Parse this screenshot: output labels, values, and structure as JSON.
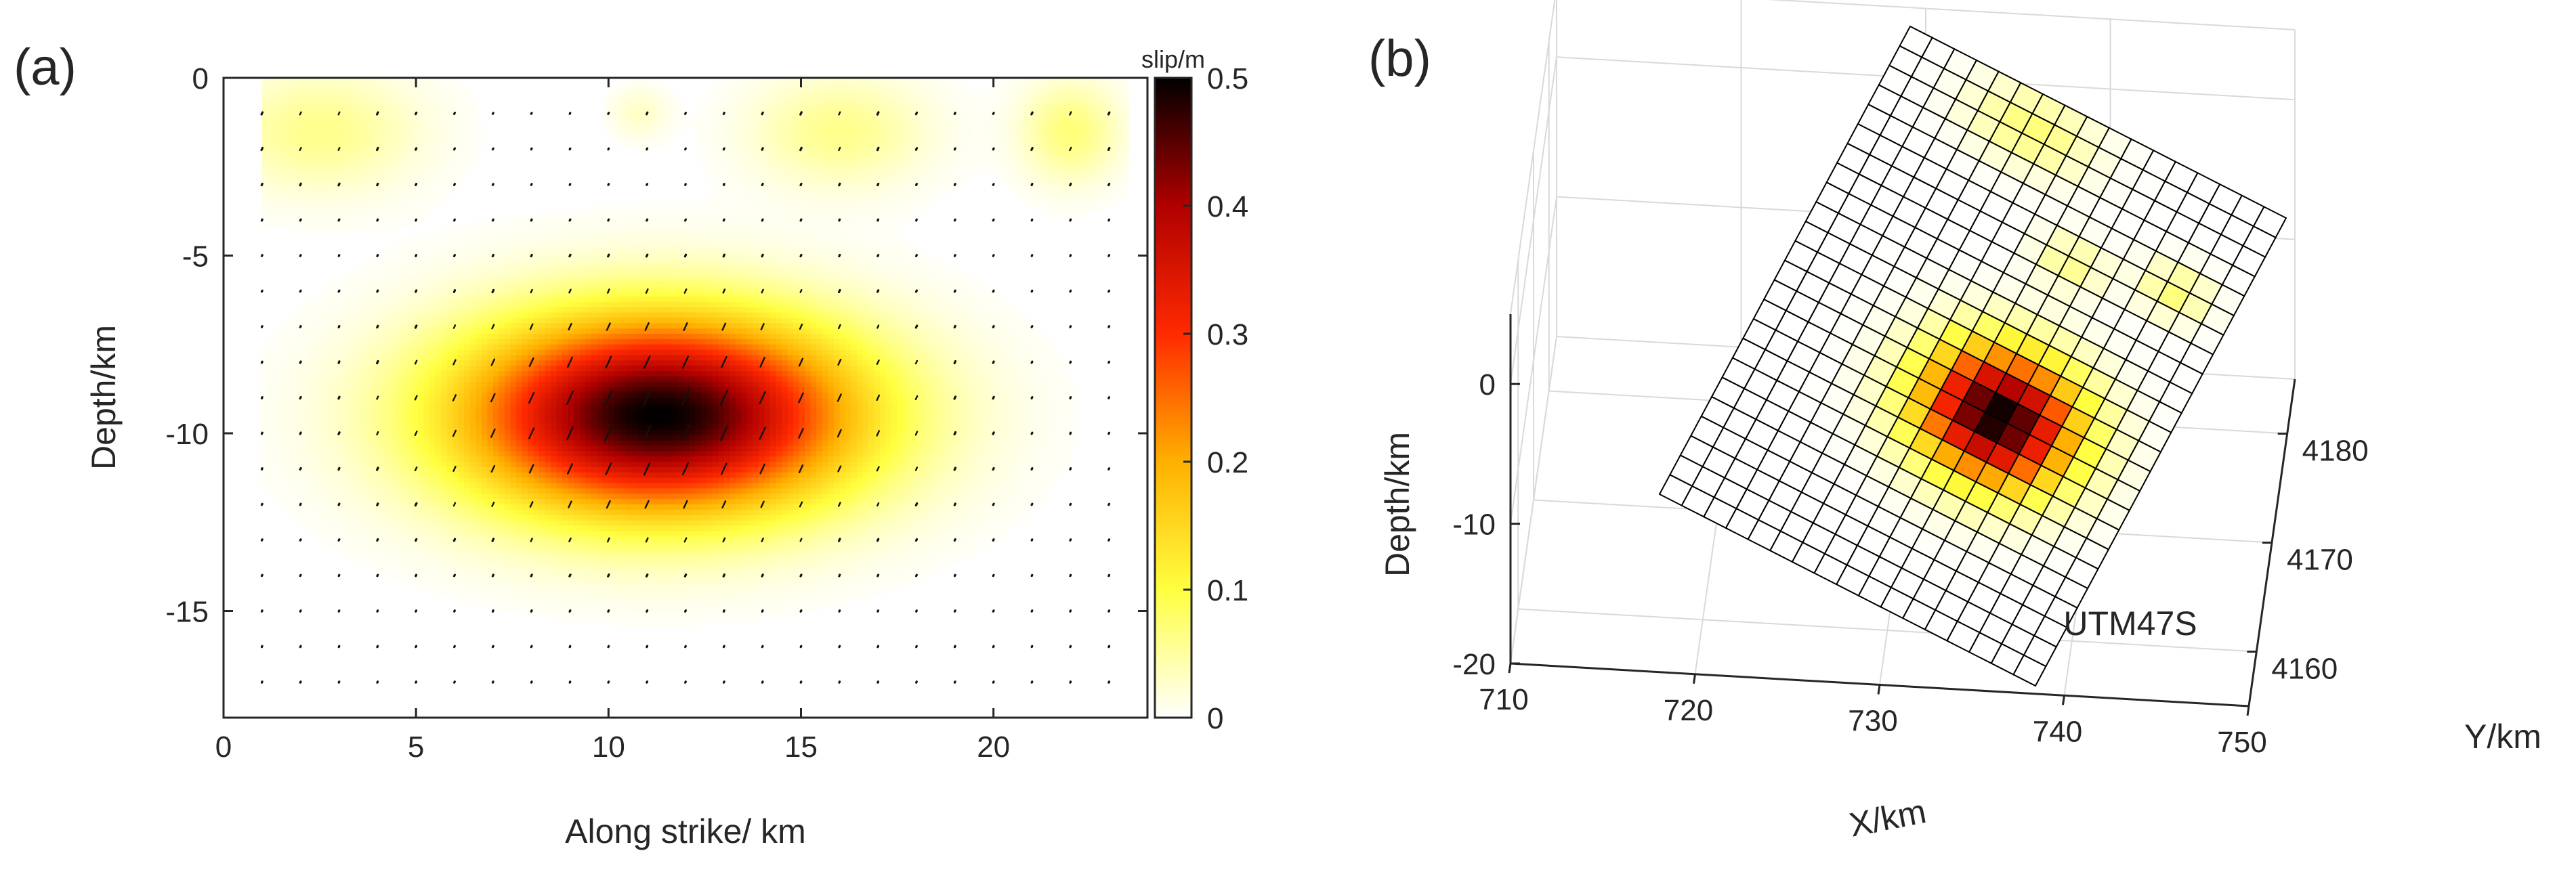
{
  "panels": {
    "a": {
      "label": "(a)"
    },
    "b": {
      "label": "(b)"
    }
  },
  "colors": {
    "colormap": [
      "#ffffff",
      "#ffff40",
      "#ffb000",
      "#ff2a00",
      "#b00000",
      "#000000"
    ],
    "grid_line": "#000000",
    "axes": "#262626"
  },
  "chart_data": [
    {
      "type": "heatmap",
      "panel": "(a)",
      "xlabel": "Along strike/ km",
      "ylabel": "Depth/km",
      "xlim": [
        0,
        24
      ],
      "ylim": [
        -18,
        0
      ],
      "xticks": [
        0,
        5,
        10,
        15,
        20
      ],
      "yticks": [
        0,
        -5,
        -10,
        -15
      ],
      "colorbar": {
        "title": "slip/m",
        "range": [
          0,
          0.5
        ],
        "ticks": [
          0,
          0.1,
          0.2,
          0.3,
          0.4,
          0.5
        ]
      },
      "fault_extent": {
        "x": [
          1,
          23.5
        ],
        "depth": [
          -17,
          0
        ]
      },
      "slip_patches": [
        {
          "x": 11.3,
          "depth": -9.5,
          "sx": 3.5,
          "sy": 1.9,
          "peak_slip": 0.5
        },
        {
          "x": 2.5,
          "depth": -1.5,
          "sx": 1.8,
          "sy": 1.2,
          "peak_slip": 0.06
        },
        {
          "x": 16.0,
          "depth": -1.5,
          "sx": 1.6,
          "sy": 1.1,
          "peak_slip": 0.06
        },
        {
          "x": 22.0,
          "depth": -1.5,
          "sx": 0.9,
          "sy": 1.0,
          "peak_slip": 0.07
        },
        {
          "x": 10.8,
          "depth": -1.0,
          "sx": 0.5,
          "sy": 0.5,
          "peak_slip": 0.03
        }
      ],
      "rake_vectors": "oblique slip arrows on 1 km grid, scaled by slip"
    },
    {
      "type": "surface3d",
      "panel": "(b)",
      "xlabel": "X/km",
      "ylabel": "Y/km",
      "zlabel": "Depth/km",
      "xlim": [
        710,
        750
      ],
      "ylim": [
        4155,
        4185
      ],
      "zlim": [
        -20,
        5
      ],
      "xticks": [
        710,
        720,
        730,
        740,
        750
      ],
      "yticks": [
        4160,
        4170,
        4180
      ],
      "zticks": [
        0,
        -10,
        -20
      ],
      "annotation": "UTM47S",
      "grid": true,
      "mesh": {
        "columns": 24,
        "rows": 17,
        "colormap": "hot (reversed)"
      }
    }
  ]
}
